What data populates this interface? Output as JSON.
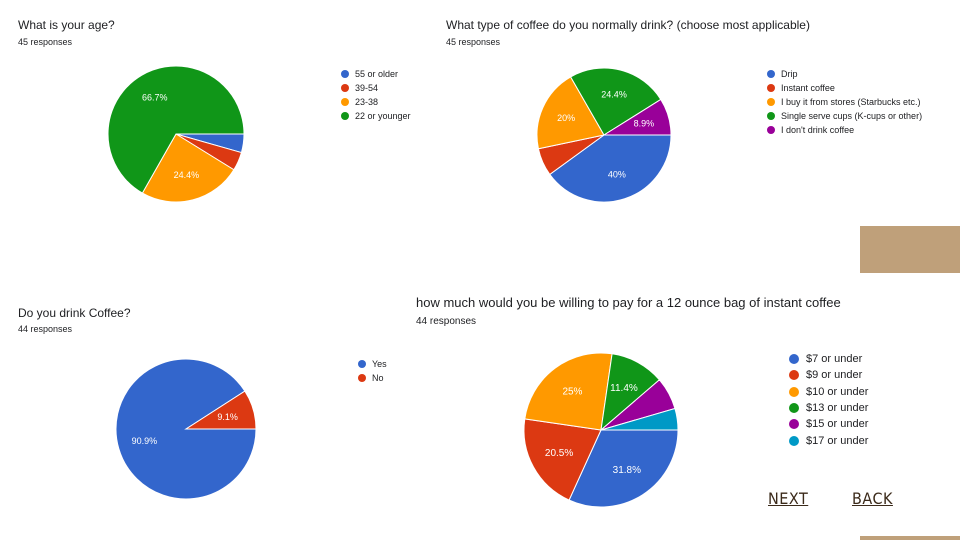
{
  "colors": {
    "blue": "#3366cc",
    "red": "#dc3912",
    "orange": "#ff9900",
    "green": "#109618",
    "purple": "#990099",
    "teal": "#0099c6",
    "accent_tan": "#bfa07a"
  },
  "nav": {
    "next_label": "NEXT",
    "back_label": "BACK"
  },
  "chart_data": [
    {
      "type": "pie",
      "title": "What is your age?",
      "subtitle": "45 responses",
      "slices": [
        {
          "label": "55 or older",
          "value": 4.4,
          "color": "#3366cc",
          "display": ""
        },
        {
          "label": "39-54",
          "value": 4.4,
          "color": "#dc3912",
          "display": ""
        },
        {
          "label": "23-38",
          "value": 24.4,
          "color": "#ff9900",
          "display": "24.4%"
        },
        {
          "label": "22 or younger",
          "value": 66.7,
          "color": "#109618",
          "display": "66.7%"
        }
      ],
      "legend_position": "right"
    },
    {
      "type": "pie",
      "title": "What type of coffee do you normally drink? (choose most applicable)",
      "subtitle": "45 responses",
      "slices": [
        {
          "label": "Drip",
          "value": 40,
          "color": "#3366cc",
          "display": "40%"
        },
        {
          "label": "Instant coffee",
          "value": 6.7,
          "color": "#dc3912",
          "display": ""
        },
        {
          "label": "I buy it from stores (Starbucks etc.)",
          "value": 20,
          "color": "#ff9900",
          "display": "20%"
        },
        {
          "label": "Single serve cups (K-cups or other)",
          "value": 24.4,
          "color": "#109618",
          "display": "24.4%"
        },
        {
          "label": "I don't drink coffee",
          "value": 8.9,
          "color": "#990099",
          "display": "8.9%"
        }
      ],
      "legend_position": "right"
    },
    {
      "type": "pie",
      "title": "Do you drink Coffee?",
      "subtitle": "44 responses",
      "slices": [
        {
          "label": "Yes",
          "value": 90.9,
          "color": "#3366cc",
          "display": "90.9%"
        },
        {
          "label": "No",
          "value": 9.1,
          "color": "#dc3912",
          "display": "9.1%"
        }
      ],
      "legend_position": "right"
    },
    {
      "type": "pie",
      "title": "how much would you be willing to pay for a 12 ounce bag of instant coffee",
      "subtitle": "44 responses",
      "slices": [
        {
          "label": "$7 or under",
          "value": 31.8,
          "color": "#3366cc",
          "display": "31.8%"
        },
        {
          "label": "$9 or under",
          "value": 20.5,
          "color": "#dc3912",
          "display": "20.5%"
        },
        {
          "label": "$10 or under",
          "value": 25,
          "color": "#ff9900",
          "display": "25%"
        },
        {
          "label": "$13 or under",
          "value": 11.4,
          "color": "#109618",
          "display": "11.4%"
        },
        {
          "label": "$15 or under",
          "value": 6.8,
          "color": "#990099",
          "display": ""
        },
        {
          "label": "$17 or under",
          "value": 4.5,
          "color": "#0099c6",
          "display": ""
        }
      ],
      "legend_position": "right"
    }
  ]
}
